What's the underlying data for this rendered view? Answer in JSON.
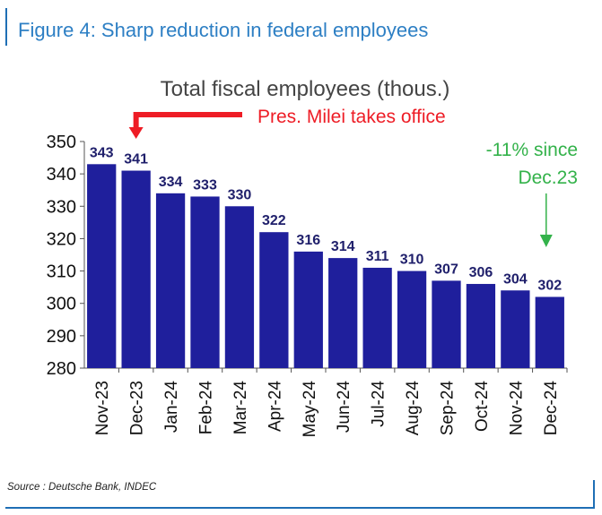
{
  "figure_title": "Figure 4: Sharp reduction in federal employees",
  "source": "Source : Deutsche Bank, INDEC",
  "colors": {
    "bar": "#1f1f9c",
    "label": "#1f1f6b",
    "title_blue": "#2d7fc4",
    "red_annotation": "#ee1c25",
    "green_annotation": "#33b24a"
  },
  "chart_data": {
    "type": "bar",
    "title": "Total fiscal employees (thous.)",
    "categories": [
      "Nov-23",
      "Dec-23",
      "Jan-24",
      "Feb-24",
      "Mar-24",
      "Apr-24",
      "May-24",
      "Jun-24",
      "Jul-24",
      "Aug-24",
      "Sep-24",
      "Oct-24",
      "Nov-24",
      "Dec-24"
    ],
    "values": [
      343,
      341,
      334,
      333,
      330,
      322,
      316,
      314,
      311,
      310,
      307,
      306,
      304,
      302
    ],
    "ylim": [
      280,
      350
    ],
    "yticks": [
      280,
      290,
      300,
      310,
      320,
      330,
      340,
      350
    ],
    "grid": false,
    "annotations": {
      "red": {
        "text": "Pres. Milei takes office",
        "target": "Dec-23"
      },
      "green": {
        "lines": [
          "-11% since",
          "Dec.23"
        ],
        "target": "Dec-24"
      }
    }
  }
}
